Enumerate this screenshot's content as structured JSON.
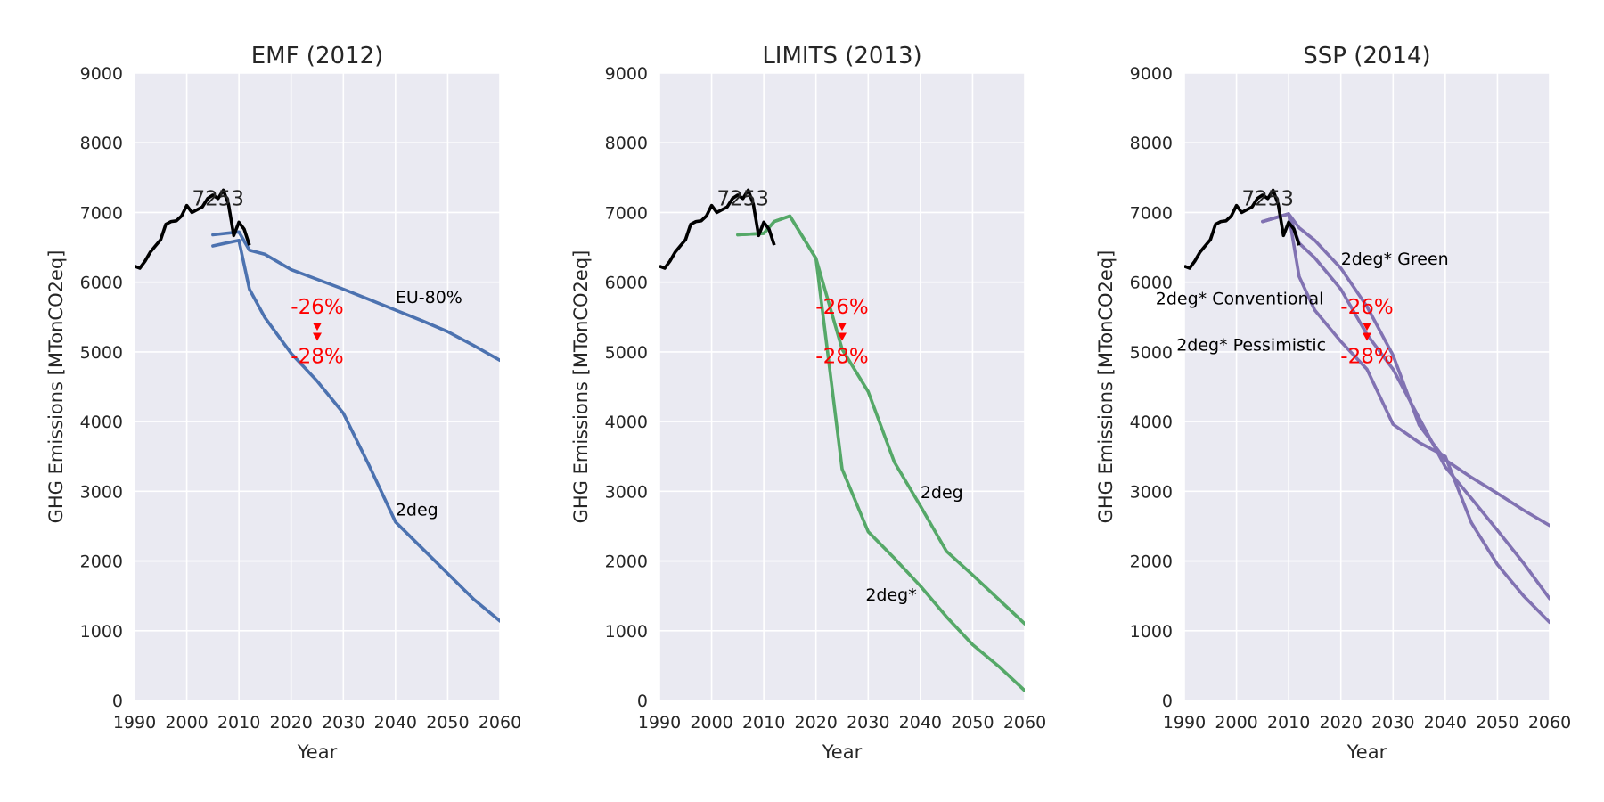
{
  "colors": {
    "plot_bg": "#eaeaf2",
    "grid": "#ffffff",
    "history": "#000000",
    "target": "#ff0000"
  },
  "chart_data": [
    {
      "type": "line",
      "title": "EMF (2012)",
      "xlabel": "Year",
      "ylabel": "GHG Emissions [MTonCO2eq]",
      "xlim": [
        1990,
        2060
      ],
      "ylim": [
        0,
        9000
      ],
      "xticks": [
        1990,
        2000,
        2010,
        2020,
        2030,
        2040,
        2050,
        2060
      ],
      "yticks": [
        0,
        1000,
        2000,
        3000,
        4000,
        5000,
        6000,
        7000,
        8000,
        9000
      ],
      "grid": true,
      "history_peak_label": "7253",
      "history_peak_point": [
        2006,
        7253
      ],
      "reduction_labels": [
        "-26%",
        "-28%"
      ],
      "reduction_year": 2025,
      "reduction_values": [
        5367,
        5222
      ],
      "series": [
        {
          "name": "EU-80%",
          "color": "#4c72b0",
          "x": [
            2005,
            2010,
            2012,
            2015,
            2020,
            2025,
            2030,
            2035,
            2040,
            2045,
            2050,
            2055,
            2060
          ],
          "y": [
            6680,
            6720,
            6460,
            6400,
            6180,
            6040,
            5900,
            5750,
            5600,
            5450,
            5290,
            5090,
            4880
          ]
        },
        {
          "name": "2deg",
          "color": "#4c72b0",
          "x": [
            2005,
            2010,
            2012,
            2015,
            2020,
            2025,
            2030,
            2035,
            2040,
            2045,
            2050,
            2055,
            2060
          ],
          "y": [
            6520,
            6600,
            5900,
            5490,
            4980,
            4580,
            4120,
            3360,
            2560,
            2190,
            1820,
            1450,
            1140
          ]
        }
      ],
      "annotations": [
        {
          "text": "EU-80%",
          "x": 2040,
          "y": 5700
        },
        {
          "text": "2deg",
          "x": 2040,
          "y": 2650
        }
      ]
    },
    {
      "type": "line",
      "title": "LIMITS (2013)",
      "xlabel": "Year",
      "ylabel": "GHG Emissions [MTonCO2eq]",
      "xlim": [
        1990,
        2060
      ],
      "ylim": [
        0,
        9000
      ],
      "xticks": [
        1990,
        2000,
        2010,
        2020,
        2030,
        2040,
        2050,
        2060
      ],
      "yticks": [
        0,
        1000,
        2000,
        3000,
        4000,
        5000,
        6000,
        7000,
        8000,
        9000
      ],
      "grid": true,
      "history_peak_label": "7253",
      "history_peak_point": [
        2006,
        7253
      ],
      "reduction_labels": [
        "-26%",
        "-28%"
      ],
      "reduction_year": 2025,
      "reduction_values": [
        5367,
        5222
      ],
      "series": [
        {
          "name": "2deg",
          "color": "#55a868",
          "x": [
            2005,
            2010,
            2012,
            2015,
            2020,
            2025,
            2030,
            2035,
            2040,
            2045,
            2050,
            2055,
            2060
          ],
          "y": [
            6680,
            6700,
            6870,
            6950,
            6340,
            5040,
            4430,
            3420,
            2790,
            2140,
            1800,
            1450,
            1100
          ]
        },
        {
          "name": "2deg*",
          "color": "#55a868",
          "x": [
            2005,
            2010,
            2012,
            2015,
            2020,
            2025,
            2030,
            2035,
            2040,
            2045,
            2050,
            2055,
            2060
          ],
          "y": [
            6680,
            6700,
            6870,
            6950,
            6340,
            3320,
            2420,
            2040,
            1640,
            1200,
            800,
            490,
            140
          ]
        }
      ],
      "annotations": [
        {
          "text": "2deg",
          "x": 2040,
          "y": 2900
        },
        {
          "text": "2deg*",
          "x": 2029.5,
          "y": 1430
        }
      ]
    },
    {
      "type": "line",
      "title": "SSP (2014)",
      "xlabel": "Year",
      "ylabel": "GHG Emissions [MTonCO2eq]",
      "xlim": [
        1990,
        2060
      ],
      "ylim": [
        0,
        9000
      ],
      "xticks": [
        1990,
        2000,
        2010,
        2020,
        2030,
        2040,
        2050,
        2060
      ],
      "yticks": [
        0,
        1000,
        2000,
        3000,
        4000,
        5000,
        6000,
        7000,
        8000,
        9000
      ],
      "grid": true,
      "history_peak_label": "7253",
      "history_peak_point": [
        2006,
        7253
      ],
      "reduction_labels": [
        "-26%",
        "-28%"
      ],
      "reduction_year": 2025,
      "reduction_values": [
        5367,
        5222
      ],
      "series": [
        {
          "name": "2deg* Green",
          "color": "#8172b2",
          "x": [
            2005,
            2010,
            2012,
            2015,
            2020,
            2025,
            2030,
            2035,
            2040,
            2045,
            2050,
            2055,
            2060
          ],
          "y": [
            6870,
            6980,
            6780,
            6600,
            6200,
            5650,
            4950,
            3950,
            3450,
            3200,
            2970,
            2730,
            2510
          ]
        },
        {
          "name": "2deg* Conventional",
          "color": "#8172b2",
          "x": [
            2005,
            2010,
            2012,
            2015,
            2020,
            2025,
            2030,
            2035,
            2040,
            2045,
            2050,
            2055,
            2060
          ],
          "y": [
            6870,
            6980,
            6560,
            6350,
            5900,
            5250,
            4750,
            4050,
            3350,
            2900,
            2440,
            1970,
            1460
          ]
        },
        {
          "name": "2deg* Pessimistic",
          "color": "#8172b2",
          "x": [
            2005,
            2010,
            2012,
            2015,
            2020,
            2025,
            2030,
            2035,
            2040,
            2045,
            2050,
            2055,
            2060
          ],
          "y": [
            6870,
            6980,
            6080,
            5600,
            5150,
            4750,
            3960,
            3700,
            3500,
            2550,
            1950,
            1500,
            1120
          ]
        }
      ],
      "annotations": [
        {
          "text": "2deg* Green",
          "x": 2020,
          "y": 6250
        },
        {
          "text": "2deg* Conventional",
          "x": 1984.5,
          "y": 5680
        },
        {
          "text": "2deg* Pessimistic",
          "x": 1988.5,
          "y": 5020
        }
      ]
    }
  ],
  "history": {
    "color": "#000000",
    "x": [
      1990,
      1991,
      1992,
      1993,
      1994,
      1995,
      1996,
      1997,
      1998,
      1999,
      2000,
      2001,
      2002,
      2003,
      2004,
      2005,
      2006,
      2007,
      2008,
      2009,
      2010,
      2011,
      2012
    ],
    "y": [
      6230,
      6200,
      6300,
      6430,
      6520,
      6610,
      6830,
      6870,
      6880,
      6950,
      7100,
      7000,
      7040,
      7080,
      7200,
      7250,
      7200,
      7320,
      7120,
      6670,
      6860,
      6760,
      6530
    ]
  }
}
